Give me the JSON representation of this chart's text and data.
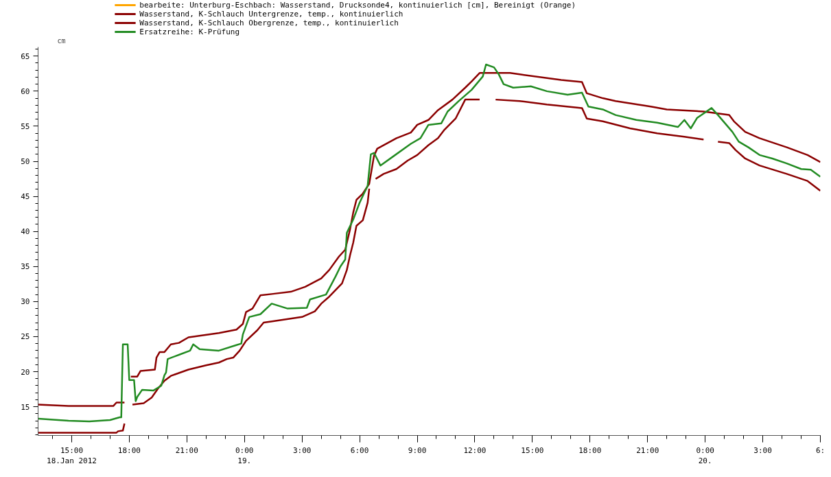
{
  "chart_data": {
    "type": "line",
    "ylabel": "cm",
    "legend": "top",
    "grid": false,
    "line_style": "solid",
    "marker": "none",
    "xlim": [
      "2012-01-18T13:15",
      "2012-01-20T06:00"
    ],
    "xticks": [
      {
        "value": "2012-01-18T15:00",
        "label": "15:00\n18.Jan 2012"
      },
      {
        "value": "2012-01-18T18:00",
        "label": "18:00"
      },
      {
        "value": "2012-01-18T21:00",
        "label": "21:00"
      },
      {
        "value": "2012-01-19T00:00",
        "label": "0:00\n19."
      },
      {
        "value": "2012-01-19T03:00",
        "label": "3:00"
      },
      {
        "value": "2012-01-19T06:00",
        "label": "6:00"
      },
      {
        "value": "2012-01-19T09:00",
        "label": "9:00"
      },
      {
        "value": "2012-01-19T12:00",
        "label": "12:00"
      },
      {
        "value": "2012-01-19T15:00",
        "label": "15:00"
      },
      {
        "value": "2012-01-19T18:00",
        "label": "18:00"
      },
      {
        "value": "2012-01-19T21:00",
        "label": "21:00"
      },
      {
        "value": "2012-01-20T00:00",
        "label": "0:00\n20."
      },
      {
        "value": "2012-01-20T03:00",
        "label": "3:00"
      },
      {
        "value": "2012-01-20T06:00",
        "label": "6:"
      }
    ],
    "ylim": [
      10.9,
      66.3
    ],
    "yticks": [
      15,
      20,
      25,
      30,
      35,
      40,
      45,
      50,
      55,
      60,
      65
    ],
    "series": [
      {
        "name": "bearbeite: Unterburg-Eschbach: Wasserstand, Drucksonde4, kontinuierlich [cm], Bereinigt (Orange)",
        "color": "#ffa500"
      },
      {
        "name": "Wasserstand, K-Schlauch Untergrenze, temp., kontinuierlich",
        "color": "#8b0000",
        "x": [
          "2012-01-18T13:15",
          "2012-01-18T17:20",
          "2012-01-18T17:25",
          "2012-01-18T17:40",
          "2012-01-18T17:45",
          "2012-01-18T17:50",
          "2012-01-18T18:10",
          "2012-01-18T18:45",
          "2012-01-18T19:10",
          "2012-01-18T19:30",
          "2012-01-18T19:50",
          "2012-01-18T20:10",
          "2012-01-18T21:05",
          "2012-01-18T22:00",
          "2012-01-18T22:40",
          "2012-01-18T23:05",
          "2012-01-18T23:25",
          "2012-01-18T23:45",
          "2012-01-19T00:05",
          "2012-01-19T00:40",
          "2012-01-19T01:00",
          "2012-01-19T01:30",
          "2012-01-19T03:00",
          "2012-01-19T03:40",
          "2012-01-19T04:00",
          "2012-01-19T04:25",
          "2012-01-19T05:05",
          "2012-01-19T05:20",
          "2012-01-19T05:30",
          "2012-01-19T05:40",
          "2012-01-19T05:50",
          "2012-01-19T06:10",
          "2012-01-19T06:25",
          "2012-01-19T06:30",
          "2012-01-19T06:35",
          "2012-01-19T06:50",
          "2012-01-19T07:15",
          "2012-01-19T07:55",
          "2012-01-19T08:30",
          "2012-01-19T09:00",
          "2012-01-19T09:35",
          "2012-01-19T10:05",
          "2012-01-19T10:25",
          "2012-01-19T11:00",
          "2012-01-19T11:30",
          "2012-01-19T12:15",
          "2012-01-19T12:25",
          "2012-01-19T13:05",
          "2012-01-19T14:20",
          "2012-01-19T15:45",
          "2012-01-19T17:35",
          "2012-01-19T17:50",
          "2012-01-19T18:40",
          "2012-01-19T20:05",
          "2012-01-19T21:30",
          "2012-01-19T22:55",
          "2012-01-19T23:55",
          "2012-01-20T00:10",
          "2012-01-20T00:40",
          "2012-01-20T01:15",
          "2012-01-20T01:35",
          "2012-01-20T02:05",
          "2012-01-20T02:50",
          "2012-01-20T04:15",
          "2012-01-20T05:20",
          "2012-01-20T06:00"
        ],
        "values": [
          11.3,
          11.3,
          11.5,
          11.6,
          12.6,
          null,
          15.3,
          15.5,
          16.3,
          17.6,
          18.7,
          19.4,
          20.3,
          20.9,
          21.3,
          21.8,
          22.0,
          23.0,
          24.4,
          25.9,
          27.0,
          27.2,
          27.8,
          28.6,
          29.7,
          30.7,
          32.6,
          34.5,
          36.6,
          38.4,
          40.8,
          41.6,
          44.1,
          46.1,
          null,
          47.5,
          48.2,
          48.9,
          50.1,
          50.9,
          52.3,
          53.3,
          54.5,
          56.1,
          58.8,
          58.8,
          null,
          58.8,
          58.6,
          58.1,
          57.6,
          56.1,
          55.7,
          54.7,
          54.0,
          53.5,
          53.1,
          null,
          52.8,
          52.6,
          51.6,
          50.4,
          49.4,
          48.2,
          47.2,
          45.8
        ]
      },
      {
        "name": "Wasserstand, K-Schlauch Obergrenze, temp., kontinuierlich",
        "color": "#8b0000",
        "x": [
          "2012-01-18T13:15",
          "2012-01-18T14:50",
          "2012-01-18T17:10",
          "2012-01-18T17:20",
          "2012-01-18T17:45",
          "2012-01-18T17:50",
          "2012-01-18T18:05",
          "2012-01-18T18:25",
          "2012-01-18T18:35",
          "2012-01-18T19:20",
          "2012-01-18T19:25",
          "2012-01-18T19:35",
          "2012-01-18T19:50",
          "2012-01-18T20:10",
          "2012-01-18T20:35",
          "2012-01-18T21:05",
          "2012-01-18T22:40",
          "2012-01-18T23:35",
          "2012-01-18T23:55",
          "2012-01-19T00:05",
          "2012-01-19T00:25",
          "2012-01-19T00:50",
          "2012-01-19T01:30",
          "2012-01-19T02:25",
          "2012-01-19T03:10",
          "2012-01-19T04:00",
          "2012-01-19T04:25",
          "2012-01-19T04:55",
          "2012-01-19T05:15",
          "2012-01-19T05:30",
          "2012-01-19T05:40",
          "2012-01-19T05:50",
          "2012-01-19T06:10",
          "2012-01-19T06:30",
          "2012-01-19T06:45",
          "2012-01-19T06:55",
          "2012-01-19T07:55",
          "2012-01-19T08:40",
          "2012-01-19T09:00",
          "2012-01-19T09:35",
          "2012-01-19T10:05",
          "2012-01-19T10:50",
          "2012-01-19T11:30",
          "2012-01-19T11:50",
          "2012-01-19T12:15",
          "2012-01-19T13:50",
          "2012-01-19T14:20",
          "2012-01-19T16:30",
          "2012-01-19T17:35",
          "2012-01-19T17:50",
          "2012-01-19T18:40",
          "2012-01-19T19:20",
          "2012-01-19T21:10",
          "2012-01-19T22:00",
          "2012-01-19T23:55",
          "2012-01-20T01:15",
          "2012-01-20T01:30",
          "2012-01-20T02:05",
          "2012-01-20T02:50",
          "2012-01-20T04:15",
          "2012-01-20T05:20",
          "2012-01-20T06:00"
        ],
        "values": [
          15.3,
          15.1,
          15.1,
          15.6,
          15.6,
          null,
          19.3,
          19.3,
          20.1,
          20.3,
          22.0,
          22.8,
          22.8,
          23.9,
          24.1,
          24.9,
          25.5,
          26.0,
          26.8,
          28.5,
          29.0,
          30.9,
          31.1,
          31.4,
          32.1,
          33.3,
          34.5,
          36.4,
          37.4,
          40.3,
          42.7,
          44.5,
          45.4,
          46.8,
          50.8,
          51.8,
          53.3,
          54.1,
          55.2,
          55.9,
          57.3,
          58.8,
          60.5,
          61.4,
          62.6,
          62.6,
          62.4,
          61.6,
          61.3,
          59.7,
          59.0,
          58.6,
          57.8,
          57.4,
          57.1,
          56.6,
          55.7,
          54.2,
          53.3,
          52.0,
          50.9,
          49.9
        ]
      },
      {
        "name": "Ersatzreihe: K-Prüfung",
        "color": "#228b22",
        "x": [
          "2012-01-18T13:15",
          "2012-01-18T14:50",
          "2012-01-18T15:55",
          "2012-01-18T17:00",
          "2012-01-18T17:30",
          "2012-01-18T17:35",
          "2012-01-18T17:40",
          "2012-01-18T17:55",
          "2012-01-18T18:00",
          "2012-01-18T18:15",
          "2012-01-18T18:20",
          "2012-01-18T18:25",
          "2012-01-18T18:40",
          "2012-01-18T19:15",
          "2012-01-18T19:40",
          "2012-01-18T19:50",
          "2012-01-18T19:55",
          "2012-01-18T20:00",
          "2012-01-18T20:35",
          "2012-01-18T21:10",
          "2012-01-18T21:20",
          "2012-01-18T21:40",
          "2012-01-18T22:40",
          "2012-01-18T23:35",
          "2012-01-18T23:50",
          "2012-01-18T23:55",
          "2012-01-19T00:15",
          "2012-01-19T00:50",
          "2012-01-19T01:25",
          "2012-01-19T02:15",
          "2012-01-19T03:15",
          "2012-01-19T03:25",
          "2012-01-19T04:15",
          "2012-01-19T04:45",
          "2012-01-19T05:00",
          "2012-01-19T05:15",
          "2012-01-19T05:20",
          "2012-01-19T05:40",
          "2012-01-19T06:00",
          "2012-01-19T06:25",
          "2012-01-19T06:35",
          "2012-01-19T06:45",
          "2012-01-19T07:05",
          "2012-01-19T07:45",
          "2012-01-19T08:40",
          "2012-01-19T09:10",
          "2012-01-19T09:35",
          "2012-01-19T10:15",
          "2012-01-19T10:35",
          "2012-01-19T11:10",
          "2012-01-19T11:50",
          "2012-01-19T12:25",
          "2012-01-19T12:35",
          "2012-01-19T13:00",
          "2012-01-19T13:15",
          "2012-01-19T13:30",
          "2012-01-19T14:00",
          "2012-01-19T14:55",
          "2012-01-19T15:45",
          "2012-01-19T16:50",
          "2012-01-19T17:35",
          "2012-01-19T17:55",
          "2012-01-19T18:40",
          "2012-01-19T19:20",
          "2012-01-19T20:25",
          "2012-01-19T21:30",
          "2012-01-19T22:35",
          "2012-01-19T22:55",
          "2012-01-19T23:15",
          "2012-01-19T23:35",
          "2012-01-20T00:20",
          "2012-01-20T00:40",
          "2012-01-20T01:25",
          "2012-01-20T01:45",
          "2012-01-20T02:15",
          "2012-01-20T02:50",
          "2012-01-20T03:30",
          "2012-01-20T04:15",
          "2012-01-20T05:00",
          "2012-01-20T05:30",
          "2012-01-20T06:00"
        ],
        "values": [
          13.3,
          13.0,
          12.9,
          13.1,
          13.5,
          13.5,
          23.9,
          23.9,
          18.8,
          18.8,
          15.8,
          16.4,
          17.4,
          17.3,
          18.0,
          19.5,
          19.9,
          21.8,
          22.4,
          23.0,
          23.9,
          23.2,
          23.0,
          23.8,
          24.0,
          25.3,
          27.8,
          28.2,
          29.7,
          29.0,
          29.1,
          30.3,
          31.0,
          33.6,
          35.0,
          36.0,
          39.8,
          41.7,
          44.1,
          46.5,
          51.0,
          51.2,
          49.4,
          50.7,
          52.5,
          53.3,
          55.2,
          55.4,
          57.1,
          58.6,
          60.2,
          62.1,
          63.8,
          63.4,
          62.4,
          61.0,
          60.5,
          60.7,
          60.0,
          59.5,
          59.8,
          57.8,
          57.4,
          56.6,
          55.9,
          55.5,
          54.9,
          55.9,
          54.7,
          56.2,
          57.6,
          56.6,
          54.2,
          52.8,
          52.0,
          50.9,
          50.4,
          49.7,
          48.9,
          48.8,
          47.8
        ]
      }
    ]
  }
}
